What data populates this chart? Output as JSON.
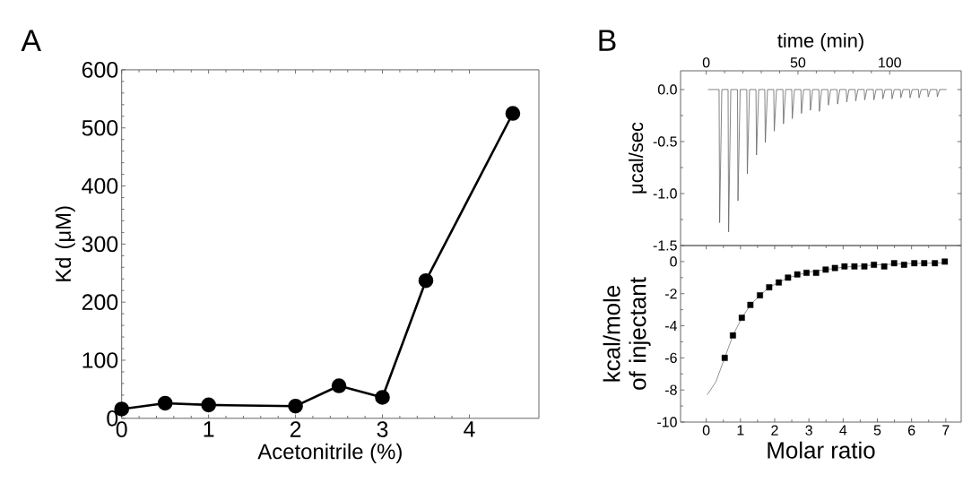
{
  "chart_data": [
    {
      "type": "line",
      "annotations": [
        "A"
      ],
      "xlabel": "Acetonitrile (%)",
      "ylabel": "Kd (μM)",
      "x": [
        0,
        0.5,
        1,
        2,
        2.5,
        3,
        3.5,
        4.5
      ],
      "series": [
        {
          "color": "#000000",
          "values": [
            16,
            26,
            23,
            21,
            56,
            36,
            237,
            525
          ]
        }
      ],
      "xlim": [
        0,
        4.8
      ],
      "ylim": [
        0,
        600
      ],
      "xticks": [
        0,
        1,
        2,
        3,
        4
      ],
      "yticks": [
        0,
        100,
        200,
        300,
        400,
        500,
        600
      ],
      "marker": "circle",
      "line_style": "solid"
    },
    {
      "type": "line",
      "annotations": [
        "B"
      ],
      "xlabel": "time (min)",
      "ylabel": "μcal/sec",
      "series": [
        {
          "color": "#666666",
          "x": [
            1,
            7.0,
            7.3,
            8.5,
            11.9,
            12.2,
            13.4,
            17.0,
            17.3,
            18.5,
            22.1,
            22.4,
            23.6,
            27.1,
            27.4,
            28.6,
            31.9,
            32.2,
            33.4,
            36.8,
            37.1,
            38.3,
            41.8,
            42.1,
            43.3,
            46.6,
            46.9,
            48.1,
            51.6,
            51.9,
            53.1,
            56.5,
            56.8,
            58.0,
            61.4,
            61.7,
            62.9,
            66.3,
            66.6,
            67.8,
            71.3,
            71.6,
            72.8,
            76.3,
            76.6,
            77.8,
            81.2,
            81.5,
            82.7,
            86.1,
            86.4,
            87.6,
            91.1,
            91.4,
            92.6,
            96.0,
            96.3,
            97.5,
            101.0,
            101.3,
            102.5,
            105.8,
            106.1,
            107.3,
            110.8,
            111.1,
            112.3,
            115.7,
            116.0,
            117.2,
            120.7,
            121.0,
            122.2,
            125.7,
            126.0,
            127.2,
            131
          ],
          "values": [
            0,
            0,
            -1.28,
            0,
            0,
            -1.37,
            0,
            0,
            -1.07,
            0,
            0,
            -0.81,
            0,
            0,
            -0.63,
            0,
            0,
            -0.51,
            0,
            0,
            -0.4,
            0,
            0,
            -0.33,
            0,
            0,
            -0.28,
            0,
            0,
            -0.23,
            0,
            0,
            -0.2,
            0,
            0,
            -0.21,
            0,
            0,
            -0.15,
            0,
            0,
            -0.14,
            0,
            0,
            -0.12,
            0,
            0,
            -0.11,
            0,
            0,
            -0.1,
            0,
            0,
            -0.1,
            0,
            0,
            -0.09,
            0,
            0,
            -0.09,
            0,
            0,
            -0.08,
            0,
            0,
            -0.08,
            0,
            0,
            -0.08,
            0,
            0,
            -0.07,
            0,
            0,
            -0.07,
            0,
            0
          ]
        }
      ],
      "xlim": [
        -14,
        139
      ],
      "ylim": [
        -1.5,
        0.18
      ],
      "xticks": [
        0,
        50,
        100
      ],
      "yticks": [
        {
          "value": 0,
          "label": "0.0"
        },
        {
          "value": -0.5,
          "label": "-0.5"
        },
        {
          "value": -1.0,
          "label": "-1.0"
        },
        {
          "value": -1.5,
          "label": "-1.5"
        }
      ],
      "marker": "none",
      "line_style": "solid"
    },
    {
      "type": "scatter",
      "xlabel": "Molar ratio",
      "ylabel": "kcal/mole of injectant",
      "series": [
        {
          "type": "scatter",
          "marker": "square",
          "color": "#000000",
          "x": [
            0.54,
            0.78,
            1.04,
            1.29,
            1.57,
            1.84,
            2.12,
            2.39,
            2.66,
            2.93,
            3.21,
            3.49,
            3.76,
            4.04,
            4.33,
            4.62,
            4.9,
            5.2,
            5.49,
            5.78,
            6.08,
            6.37,
            6.68,
            6.97
          ],
          "values": [
            -6.0,
            -4.6,
            -3.5,
            -2.7,
            -2.1,
            -1.6,
            -1.3,
            -1.0,
            -0.8,
            -0.7,
            -0.7,
            -0.5,
            -0.4,
            -0.3,
            -0.3,
            -0.3,
            -0.2,
            -0.3,
            -0.1,
            -0.2,
            -0.1,
            -0.1,
            -0.1,
            0.0
          ]
        },
        {
          "type": "line",
          "marker": "none",
          "color": "#777777",
          "x": [
            0.03,
            0.28,
            0.54,
            0.78,
            1.04,
            1.29,
            1.57,
            1.84,
            2.4,
            3.0,
            4.0,
            5.0,
            6.0,
            7.0
          ],
          "values": [
            -8.3,
            -7.5,
            -6.0,
            -4.6,
            -3.5,
            -2.7,
            -2.1,
            -1.6,
            -1.0,
            -0.65,
            -0.35,
            -0.2,
            -0.12,
            -0.07
          ]
        }
      ],
      "xlim": [
        -0.75,
        7.45
      ],
      "ylim": [
        -10,
        1
      ],
      "xticks": [
        0,
        1,
        2,
        3,
        4,
        5,
        6,
        7
      ],
      "yticks": [
        0,
        -2,
        -4,
        -6,
        -8,
        -10
      ],
      "line_style": "solid"
    }
  ]
}
